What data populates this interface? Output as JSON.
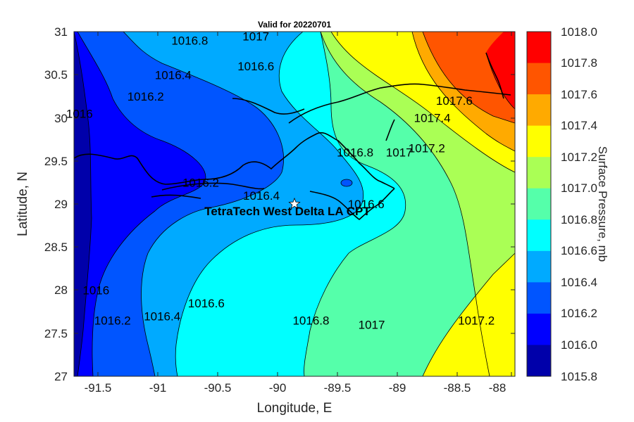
{
  "title": "Valid for 20220701",
  "xlabel": "Longitude, E",
  "ylabel": "Latitude, N",
  "x_ticks": [
    "-91.5",
    "-91",
    "-90.5",
    "-90",
    "-89.5",
    "-89",
    "-88.5",
    "-88"
  ],
  "y_ticks": [
    "31",
    "30.5",
    "30",
    "29.5",
    "29",
    "28.5",
    "28",
    "27.5",
    "27"
  ],
  "colorbar": {
    "label": "Surface Pressure, mb",
    "ticks": [
      "1018.0",
      "1017.8",
      "1017.6",
      "1017.4",
      "1017.2",
      "1017.0",
      "1016.8",
      "1016.6",
      "1016.4",
      "1016.2",
      "1016.0",
      "1015.8"
    ],
    "colors": [
      "#ff0000",
      "#ff5500",
      "#ffaa00",
      "#ffff00",
      "#aaff55",
      "#55ffaa",
      "#00ffff",
      "#00aaff",
      "#0055ff",
      "#0000ff",
      "#0000aa"
    ]
  },
  "station": {
    "name": "TetraTech West Delta LA CPT",
    "lon": -89.75,
    "lat": 29.0
  },
  "contour_labels": [
    {
      "text": "1016.8",
      "lon": -90.7,
      "lat": 30.85
    },
    {
      "text": "1017",
      "lon": -90.1,
      "lat": 30.9
    },
    {
      "text": "1016.6",
      "lon": -90.1,
      "lat": 30.55
    },
    {
      "text": "1016.4",
      "lon": -90.85,
      "lat": 30.45
    },
    {
      "text": "1016.2",
      "lon": -91.1,
      "lat": 30.2
    },
    {
      "text": "1016",
      "lon": -91.7,
      "lat": 30.0
    },
    {
      "text": "1017.6",
      "lon": -88.3,
      "lat": 30.15
    },
    {
      "text": "1017.4",
      "lon": -88.5,
      "lat": 29.95
    },
    {
      "text": "1017.2",
      "lon": -88.55,
      "lat": 29.6
    },
    {
      "text": "1017",
      "lon": -88.8,
      "lat": 29.55
    },
    {
      "text": "1016.8",
      "lon": -89.2,
      "lat": 29.55
    },
    {
      "text": "1016.2",
      "lon": -90.6,
      "lat": 29.2
    },
    {
      "text": "1016.4",
      "lon": -90.05,
      "lat": 29.05
    },
    {
      "text": "1016.6",
      "lon": -89.1,
      "lat": 28.95
    },
    {
      "text": "1016",
      "lon": -91.55,
      "lat": 27.95
    },
    {
      "text": "1016.2",
      "lon": -91.4,
      "lat": 27.6
    },
    {
      "text": "1016.4",
      "lon": -90.95,
      "lat": 27.65
    },
    {
      "text": "1016.6",
      "lon": -90.55,
      "lat": 27.8
    },
    {
      "text": "1016.8",
      "lon": -89.6,
      "lat": 27.6
    },
    {
      "text": "1017",
      "lon": -89.05,
      "lat": 27.55
    },
    {
      "text": "1017.2",
      "lon": -88.1,
      "lat": 27.6
    }
  ]
}
